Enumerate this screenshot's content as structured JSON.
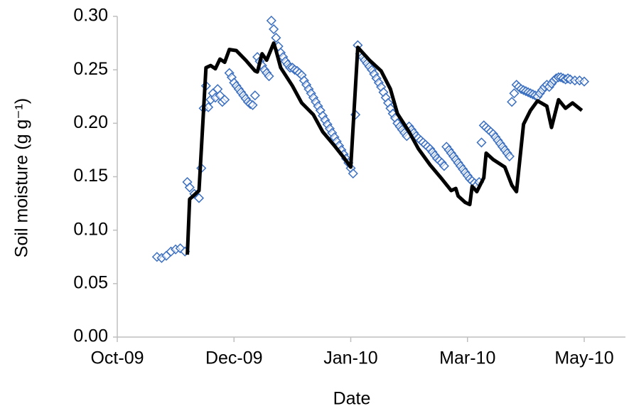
{
  "chart_data": {
    "type": "line",
    "xlabel": "Date",
    "ylabel": "Soil moisture (g g⁻¹)",
    "xlim": [
      0,
      200
    ],
    "xticks": [
      {
        "value": 0,
        "label": "Oct-09"
      },
      {
        "value": 50,
        "label": "Dec-09"
      },
      {
        "value": 100,
        "label": "Jan-10"
      },
      {
        "value": 150,
        "label": "Mar-10"
      },
      {
        "value": 200,
        "label": "May-10"
      }
    ],
    "ylim": [
      0,
      0.3
    ],
    "yticks": [
      {
        "value": 0,
        "label": "0.00"
      },
      {
        "value": 0.05,
        "label": "0.05"
      },
      {
        "value": 0.1,
        "label": "0.10"
      },
      {
        "value": 0.15,
        "label": "0.15"
      },
      {
        "value": 0.2,
        "label": "0.20"
      },
      {
        "value": 0.25,
        "label": "0.25"
      },
      {
        "value": 0.3,
        "label": "0.30"
      }
    ],
    "grid": false,
    "series": [
      {
        "type": "scatter",
        "marker": "diamond",
        "color": "#3b6fc0",
        "x": [
          17,
          19,
          21,
          23,
          25,
          27,
          29,
          30,
          31,
          33,
          35,
          36,
          37,
          38,
          39,
          40,
          41,
          42,
          43,
          44,
          45,
          46,
          48,
          49,
          50,
          51,
          52,
          53,
          54,
          55,
          56,
          57,
          58,
          59,
          60,
          61,
          62,
          63,
          64,
          65,
          66,
          67,
          68,
          69,
          70,
          71,
          72,
          73,
          74,
          75,
          76,
          77,
          78,
          79,
          80,
          81,
          82,
          83,
          84,
          85,
          86,
          87,
          88,
          89,
          90,
          91,
          92,
          93,
          94,
          95,
          96,
          97,
          98,
          99,
          100,
          101,
          102,
          103,
          104,
          105,
          106,
          107,
          108,
          109,
          110,
          111,
          112,
          113,
          114,
          115,
          116,
          117,
          118,
          119,
          120,
          121,
          122,
          123,
          124,
          125,
          126,
          127,
          128,
          129,
          130,
          131,
          132,
          133,
          134,
          135,
          136,
          137,
          138,
          139,
          140,
          141,
          142,
          143,
          144,
          145,
          146,
          147,
          148,
          149,
          150,
          151,
          152,
          153,
          154,
          155,
          156,
          157,
          158,
          159,
          160,
          161,
          162,
          163,
          164,
          165,
          166,
          167,
          168,
          169,
          170,
          171,
          172,
          173,
          174,
          175,
          176,
          177,
          178,
          179,
          180,
          181,
          182,
          183,
          184,
          185,
          186,
          187,
          188,
          189,
          190,
          191,
          192,
          193,
          194,
          196,
          198,
          200
        ],
        "values": [
          0.075,
          0.074,
          0.076,
          0.08,
          0.082,
          0.083,
          0.08,
          0.145,
          0.14,
          0.134,
          0.13,
          0.158,
          0.214,
          0.235,
          0.215,
          0.222,
          0.228,
          0.224,
          0.232,
          0.226,
          0.22,
          0.222,
          0.247,
          0.243,
          0.238,
          0.235,
          0.232,
          0.229,
          0.226,
          0.223,
          0.22,
          0.218,
          0.217,
          0.226,
          0.262,
          0.258,
          0.254,
          0.25,
          0.247,
          0.244,
          0.296,
          0.288,
          0.28,
          0.272,
          0.266,
          0.262,
          0.258,
          0.255,
          0.252,
          0.252,
          0.25,
          0.249,
          0.247,
          0.245,
          0.24,
          0.236,
          0.232,
          0.228,
          0.224,
          0.22,
          0.216,
          0.212,
          0.207,
          0.203,
          0.199,
          0.195,
          0.191,
          0.187,
          0.183,
          0.179,
          0.175,
          0.171,
          0.167,
          0.163,
          0.158,
          0.153,
          0.208,
          0.273,
          0.265,
          0.262,
          0.259,
          0.256,
          0.253,
          0.25,
          0.246,
          0.242,
          0.238,
          0.234,
          0.229,
          0.224,
          0.219,
          0.214,
          0.209,
          0.205,
          0.2,
          0.197,
          0.194,
          0.191,
          0.188,
          0.197,
          0.194,
          0.191,
          0.188,
          0.186,
          0.184,
          0.182,
          0.18,
          0.178,
          0.176,
          0.173,
          0.17,
          0.167,
          0.165,
          0.163,
          0.16,
          0.178,
          0.175,
          0.172,
          0.169,
          0.166,
          0.163,
          0.16,
          0.157,
          0.154,
          0.151,
          0.148,
          0.146,
          0.144,
          0.142,
          0.145,
          0.182,
          0.198,
          0.196,
          0.194,
          0.192,
          0.19,
          0.187,
          0.184,
          0.181,
          0.178,
          0.175,
          0.172,
          0.169,
          0.22,
          0.228,
          0.236,
          0.234,
          0.232,
          0.231,
          0.23,
          0.229,
          0.228,
          0.227,
          0.226,
          0.225,
          0.228,
          0.231,
          0.234,
          0.236,
          0.234,
          0.237,
          0.24,
          0.242,
          0.243,
          0.243,
          0.242,
          0.241,
          0.242,
          0.241,
          0.24,
          0.24,
          0.239
        ]
      },
      {
        "type": "line",
        "color": "#000000",
        "x": [
          30,
          31,
          35,
          38,
          40,
          42,
          44,
          46,
          48,
          51,
          55,
          59,
          60,
          62,
          64,
          67,
          68,
          70,
          75,
          79,
          84,
          88,
          93,
          97,
          100,
          103,
          108,
          113,
          117,
          120,
          125,
          129,
          134,
          139,
          143,
          145,
          146,
          149,
          151,
          152,
          154,
          157,
          158,
          161,
          166,
          169,
          171,
          174,
          177,
          180,
          184,
          186,
          189,
          192,
          195,
          199
        ],
        "values": [
          0.077,
          0.129,
          0.137,
          0.252,
          0.254,
          0.251,
          0.26,
          0.257,
          0.269,
          0.268,
          0.259,
          0.249,
          0.248,
          0.265,
          0.259,
          0.275,
          0.268,
          0.252,
          0.235,
          0.219,
          0.208,
          0.192,
          0.179,
          0.168,
          0.159,
          0.271,
          0.259,
          0.249,
          0.232,
          0.209,
          0.192,
          0.176,
          0.161,
          0.148,
          0.137,
          0.139,
          0.132,
          0.126,
          0.124,
          0.141,
          0.136,
          0.149,
          0.172,
          0.166,
          0.159,
          0.142,
          0.136,
          0.199,
          0.212,
          0.221,
          0.216,
          0.196,
          0.222,
          0.214,
          0.219,
          0.212
        ]
      }
    ]
  }
}
